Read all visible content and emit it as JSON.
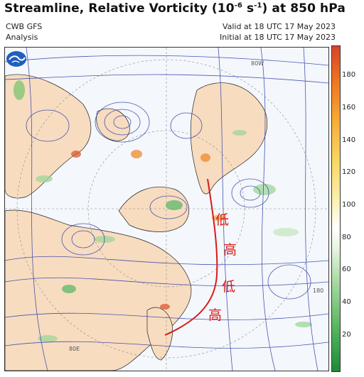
{
  "header": {
    "title_prefix": "Streamline, Relative Vorticity (10",
    "title_exp": "-6",
    "title_mid": " s",
    "title_exp2": "-1",
    "title_suffix": ") at 850 hPa",
    "model": "CWB GFS",
    "analysis": "Analysis",
    "valid": "Valid at 18 UTC 17 May 2023",
    "initial": "Initial at 18 UTC 17 May 2023"
  },
  "map": {
    "annotations": [
      {
        "text": "低",
        "kind": "low"
      },
      {
        "text": "高",
        "kind": "high"
      },
      {
        "text": "低",
        "kind": "low"
      },
      {
        "text": "高",
        "kind": "high"
      }
    ],
    "meridian_labels": [
      "80W",
      "180",
      "80E"
    ],
    "annotation_color": "#d81b1b"
  },
  "colorbar": {
    "ticks": [
      "180",
      "160",
      "140",
      "120",
      "100",
      "80",
      "60",
      "40",
      "20"
    ],
    "colors": [
      "#d9432b",
      "#ef7a22",
      "#f6b03a",
      "#f9d967",
      "#fbf2b4",
      "#e9f5e1",
      "#9fd69a",
      "#4fb25a",
      "#1d8a3a"
    ]
  }
}
